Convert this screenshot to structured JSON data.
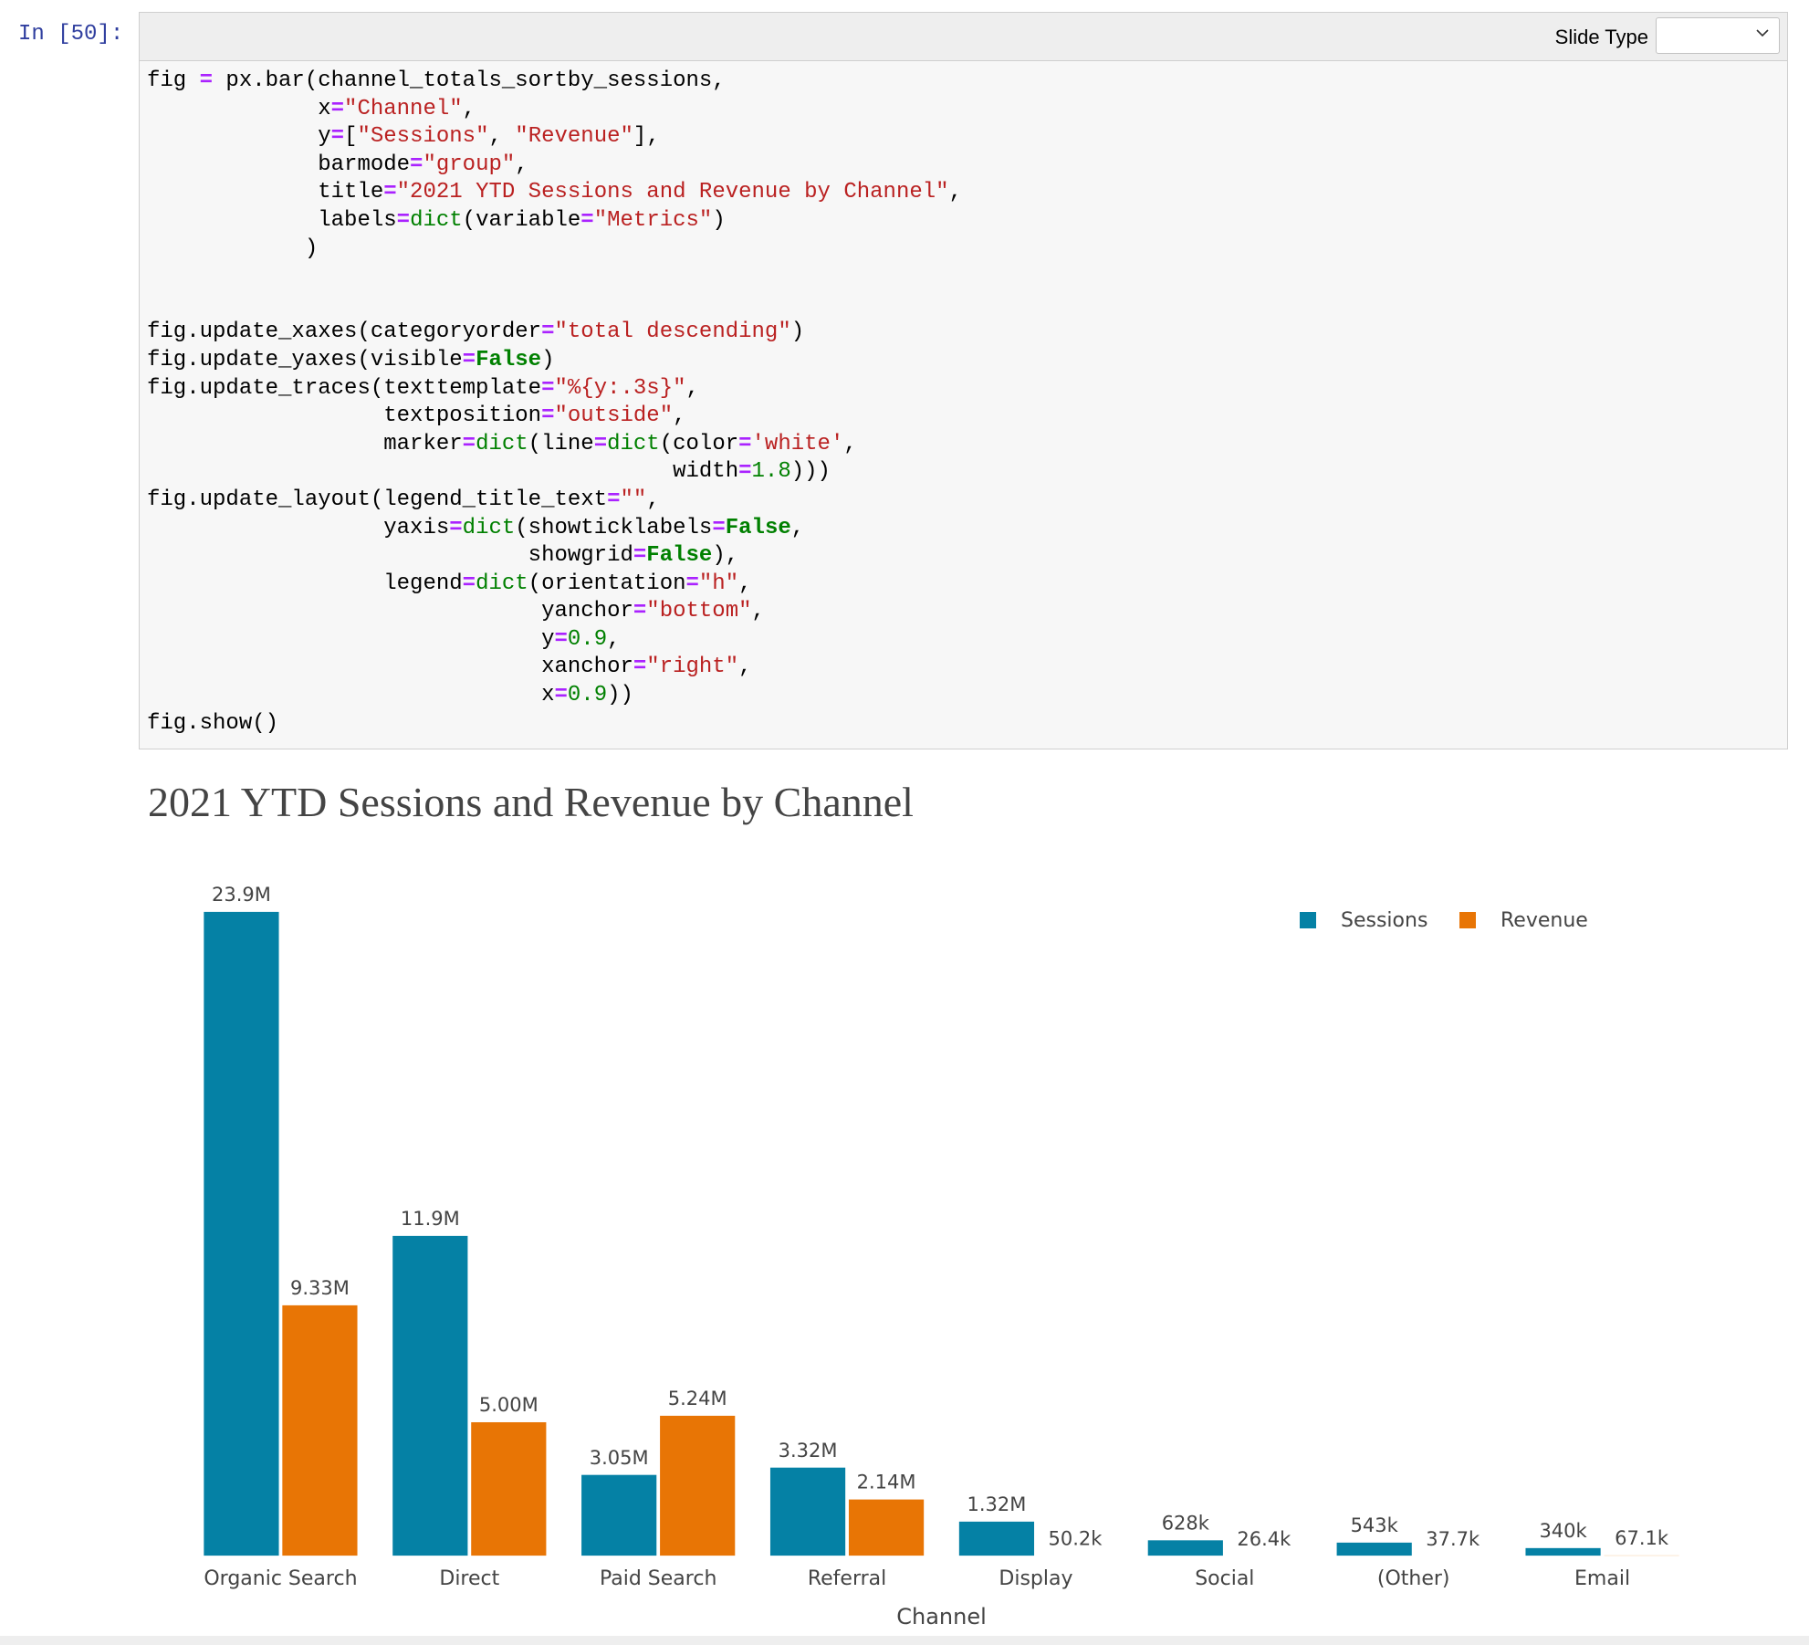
{
  "prompt": "In [50]:",
  "toolbar": {
    "slide_type_label": "Slide Type",
    "slide_type_value": ""
  },
  "code_lines": [
    [
      [
        "n",
        "fig "
      ],
      [
        "o",
        "="
      ],
      [
        "n",
        " px.bar(channel_totals_sortby_sessions,"
      ]
    ],
    [
      [
        "n",
        "             x"
      ],
      [
        "o",
        "="
      ],
      [
        "s",
        "\"Channel\""
      ],
      [
        "n",
        ","
      ]
    ],
    [
      [
        "n",
        "             y"
      ],
      [
        "o",
        "="
      ],
      [
        "n",
        "["
      ],
      [
        "s",
        "\"Sessions\""
      ],
      [
        "n",
        ", "
      ],
      [
        "s",
        "\"Revenue\""
      ],
      [
        "n",
        "],"
      ]
    ],
    [
      [
        "n",
        "             barmode"
      ],
      [
        "o",
        "="
      ],
      [
        "s",
        "\"group\""
      ],
      [
        "n",
        ","
      ]
    ],
    [
      [
        "n",
        "             title"
      ],
      [
        "o",
        "="
      ],
      [
        "s",
        "\"2021 YTD Sessions and Revenue by Channel\""
      ],
      [
        "n",
        ","
      ]
    ],
    [
      [
        "n",
        "             labels"
      ],
      [
        "o",
        "="
      ],
      [
        "f",
        "dict"
      ],
      [
        "n",
        "(variable"
      ],
      [
        "o",
        "="
      ],
      [
        "s",
        "\"Metrics\""
      ],
      [
        "n",
        ")"
      ]
    ],
    [
      [
        "n",
        "            )"
      ]
    ],
    [
      [
        "n",
        ""
      ]
    ],
    [
      [
        "n",
        ""
      ]
    ],
    [
      [
        "n",
        "fig.update_xaxes(categoryorder"
      ],
      [
        "o",
        "="
      ],
      [
        "s",
        "\"total descending\""
      ],
      [
        "n",
        ")"
      ]
    ],
    [
      [
        "n",
        "fig.update_yaxes(visible"
      ],
      [
        "o",
        "="
      ],
      [
        "k",
        "False"
      ],
      [
        "n",
        ")"
      ]
    ],
    [
      [
        "n",
        "fig.update_traces(texttemplate"
      ],
      [
        "o",
        "="
      ],
      [
        "s",
        "\"%{y:.3s}\""
      ],
      [
        "n",
        ","
      ]
    ],
    [
      [
        "n",
        "                  textposition"
      ],
      [
        "o",
        "="
      ],
      [
        "s",
        "\"outside\""
      ],
      [
        "n",
        ","
      ]
    ],
    [
      [
        "n",
        "                  marker"
      ],
      [
        "o",
        "="
      ],
      [
        "f",
        "dict"
      ],
      [
        "n",
        "(line"
      ],
      [
        "o",
        "="
      ],
      [
        "f",
        "dict"
      ],
      [
        "n",
        "(color"
      ],
      [
        "o",
        "="
      ],
      [
        "s",
        "'white'"
      ],
      [
        "n",
        ","
      ]
    ],
    [
      [
        "n",
        "                                        width"
      ],
      [
        "o",
        "="
      ],
      [
        "d",
        "1.8"
      ],
      [
        "n",
        ")))"
      ]
    ],
    [
      [
        "n",
        "fig.update_layout(legend_title_text"
      ],
      [
        "o",
        "="
      ],
      [
        "s",
        "\"\""
      ],
      [
        "n",
        ","
      ]
    ],
    [
      [
        "n",
        "                  yaxis"
      ],
      [
        "o",
        "="
      ],
      [
        "f",
        "dict"
      ],
      [
        "n",
        "(showticklabels"
      ],
      [
        "o",
        "="
      ],
      [
        "k",
        "False"
      ],
      [
        "n",
        ","
      ]
    ],
    [
      [
        "n",
        "                             showgrid"
      ],
      [
        "o",
        "="
      ],
      [
        "k",
        "False"
      ],
      [
        "n",
        "),"
      ]
    ],
    [
      [
        "n",
        "                  legend"
      ],
      [
        "o",
        "="
      ],
      [
        "f",
        "dict"
      ],
      [
        "n",
        "(orientation"
      ],
      [
        "o",
        "="
      ],
      [
        "s",
        "\"h\""
      ],
      [
        "n",
        ","
      ]
    ],
    [
      [
        "n",
        "                              yanchor"
      ],
      [
        "o",
        "="
      ],
      [
        "s",
        "\"bottom\""
      ],
      [
        "n",
        ","
      ]
    ],
    [
      [
        "n",
        "                              y"
      ],
      [
        "o",
        "="
      ],
      [
        "d",
        "0.9"
      ],
      [
        "n",
        ","
      ]
    ],
    [
      [
        "n",
        "                              xanchor"
      ],
      [
        "o",
        "="
      ],
      [
        "s",
        "\"right\""
      ],
      [
        "n",
        ","
      ]
    ],
    [
      [
        "n",
        "                              x"
      ],
      [
        "o",
        "="
      ],
      [
        "d",
        "0.9"
      ],
      [
        "n",
        "))"
      ]
    ],
    [
      [
        "n",
        "fig.show()"
      ]
    ]
  ],
  "chart_data": {
    "type": "bar",
    "title": "2021 YTD Sessions and Revenue by Channel",
    "xlabel": "Channel",
    "ylabel": "",
    "barmode": "group",
    "yaxis_visible": false,
    "grid": false,
    "legend_placement": "top-right",
    "categories": [
      "Organic Search",
      "Direct",
      "Paid Search",
      "Referral",
      "Display",
      "Social",
      "(Other)",
      "Email"
    ],
    "series": [
      {
        "name": "Sessions",
        "color": "#0581a5",
        "values": [
          23900000,
          11900000,
          3050000,
          3320000,
          1320000,
          628000,
          543000,
          340000
        ],
        "labels": [
          "23.9M",
          "11.9M",
          "3.05M",
          "3.32M",
          "1.32M",
          "628k",
          "543k",
          "340k"
        ]
      },
      {
        "name": "Revenue",
        "color": "#e87505",
        "values": [
          9330000,
          5000000,
          5240000,
          2140000,
          50200,
          26400,
          37700,
          67100
        ],
        "labels": [
          "9.33M",
          "5.00M",
          "5.24M",
          "2.14M",
          "50.2k",
          "26.4k",
          "37.7k",
          "67.1k"
        ]
      }
    ],
    "ylim": [
      0,
      23900000
    ]
  }
}
